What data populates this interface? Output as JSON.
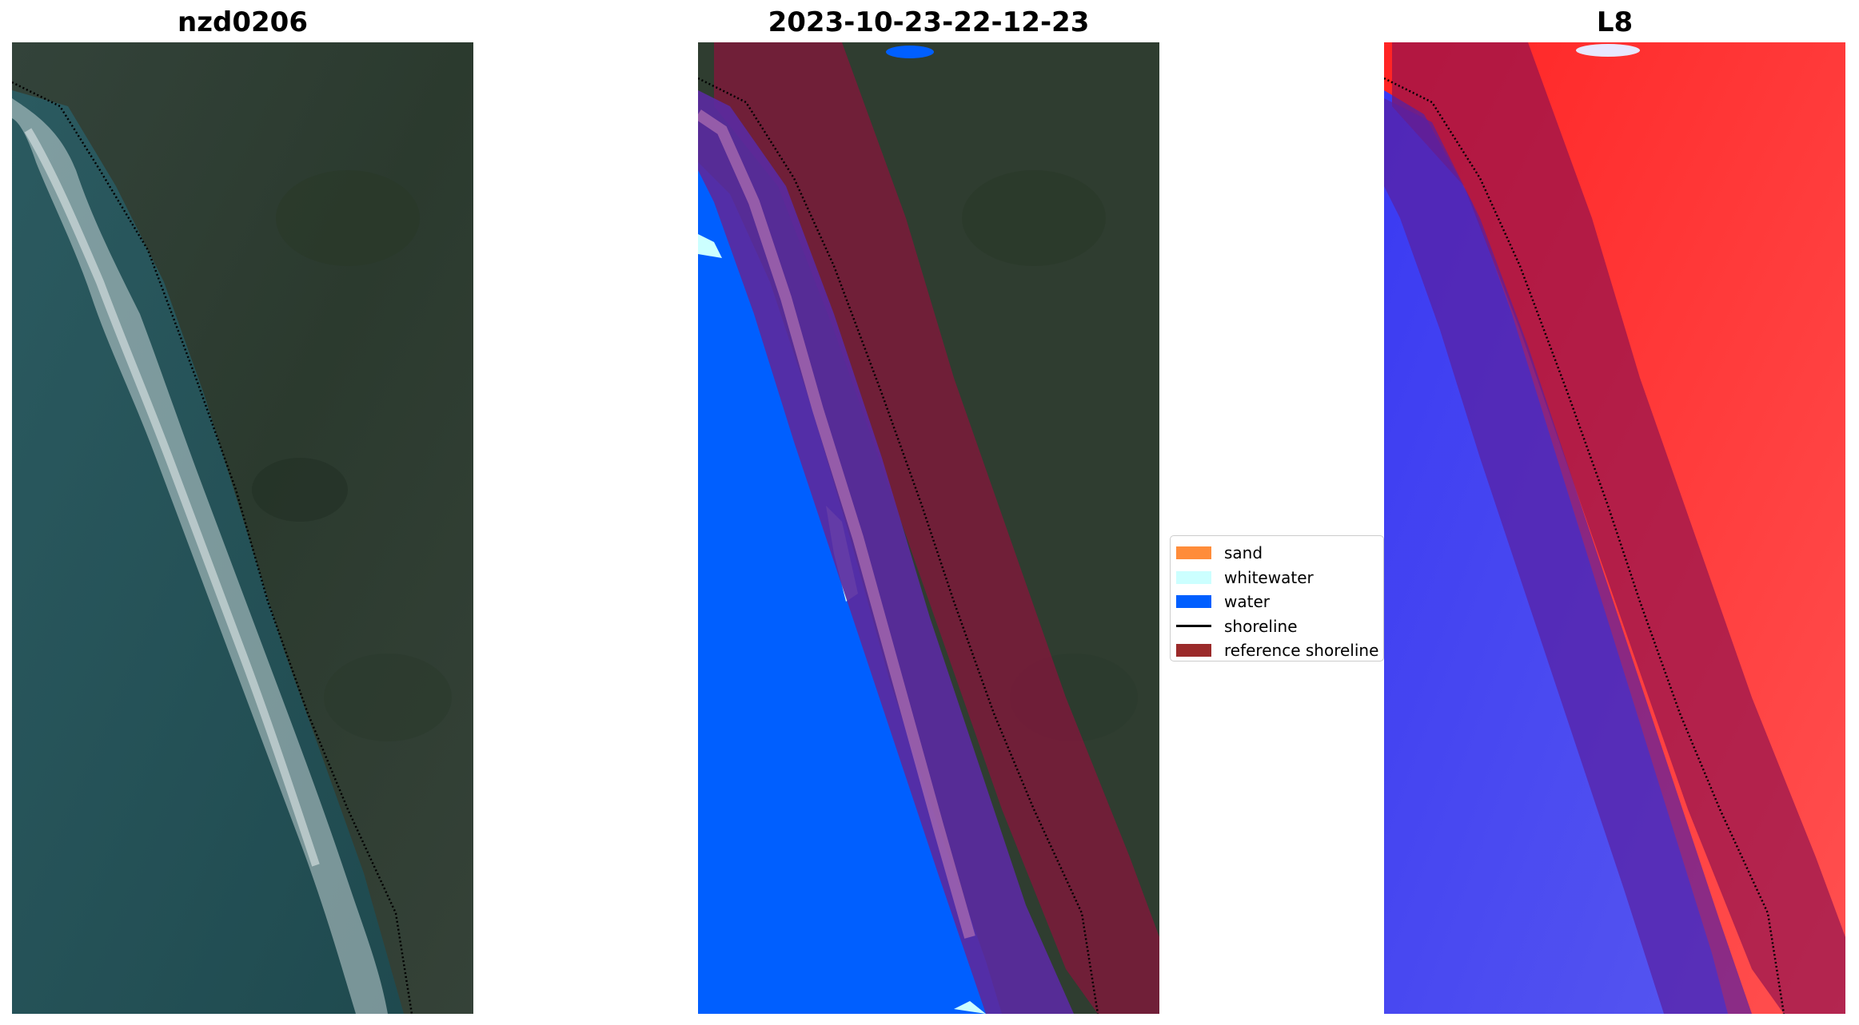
{
  "titles": {
    "left": "nzd0206",
    "center": "2023-10-23-22-12-23",
    "right": "L8"
  },
  "legend": {
    "items": [
      {
        "label": "sand",
        "color": "#ff8c3a",
        "kind": "patch"
      },
      {
        "label": "whitewater",
        "color": "#ccffff",
        "kind": "patch"
      },
      {
        "label": "water",
        "color": "#005fff",
        "kind": "patch"
      },
      {
        "label": "shoreline",
        "color": "#000000",
        "kind": "line"
      },
      {
        "label": "reference shoreline",
        "color": "#8b1a1a",
        "kind": "patch"
      }
    ]
  },
  "colors": {
    "land_green": "#2f3d30",
    "ocean_teal": "#234f55",
    "water_blue": "#005fff",
    "reference_band": "#7b1a3a",
    "sand_overlay": "#6a2ea3",
    "ndwi_land_red": "#ff3030",
    "ndwi_water_blue": "#3c3cf0"
  }
}
